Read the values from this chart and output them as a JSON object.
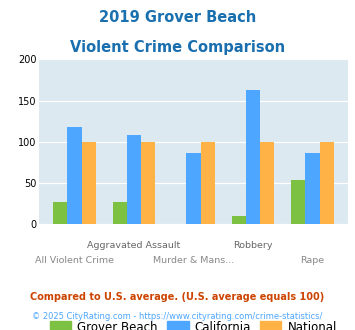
{
  "title_line1": "2019 Grover Beach",
  "title_line2": "Violent Crime Comparison",
  "title_color": "#1a6faf",
  "categories": [
    "All Violent Crime",
    "Aggravated Assault",
    "Murder & Mans...",
    "Robbery",
    "Rape"
  ],
  "category_labels_line1": [
    "",
    "Aggravated Assault",
    "",
    "Robbery",
    ""
  ],
  "category_labels_line2": [
    "All Violent Crime",
    "",
    "Murder & Mans...",
    "",
    "Rape"
  ],
  "grover_beach": [
    27,
    27,
    0,
    10,
    54
  ],
  "california": [
    118,
    108,
    86,
    163,
    87
  ],
  "national": [
    100,
    100,
    100,
    100,
    100
  ],
  "bar_colors": {
    "grover_beach": "#7dc142",
    "california": "#4da6ff",
    "national": "#ffb347"
  },
  "ylim": [
    0,
    200
  ],
  "yticks": [
    0,
    50,
    100,
    150,
    200
  ],
  "plot_bg": "#dce9f0",
  "legend_labels": [
    "Grover Beach",
    "California",
    "National"
  ],
  "footnote1": "Compared to U.S. average. (U.S. average equals 100)",
  "footnote2": "© 2025 CityRating.com - https://www.cityrating.com/crime-statistics/",
  "footnote1_color": "#cc4400",
  "footnote2_color": "#4da6ff",
  "footnote2_prefix_color": "#888888"
}
